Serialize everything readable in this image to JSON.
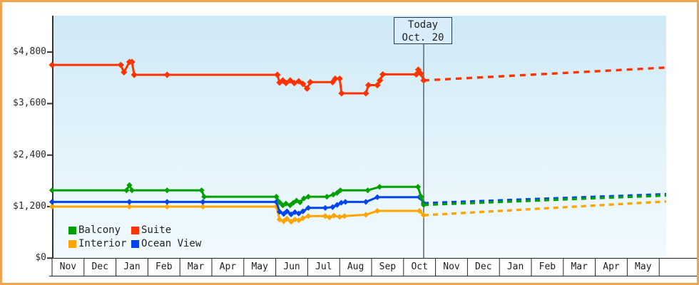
{
  "frame": {
    "border_color": "#efa452"
  },
  "today_box": {
    "line1": "Today",
    "line2": "Oct. 20"
  },
  "legend": {
    "items": [
      {
        "label": "Balcony",
        "color": "#00a000"
      },
      {
        "label": "Suite",
        "color": "#ff3300"
      },
      {
        "label": "Interior",
        "color": "#ffa500"
      },
      {
        "label": "Ocean View",
        "color": "#0044ee"
      }
    ]
  },
  "chart_data": {
    "type": "line",
    "title": "",
    "xlabel": "",
    "ylabel": "",
    "grid": false,
    "legend_position": "bottom-left",
    "background_gradient": [
      "#cfe9f6",
      "#f2fbfe"
    ],
    "y_axis": {
      "tick_labels": [
        "$0",
        "$1,200",
        "$2,400",
        "$3,600",
        "$4,800"
      ],
      "tick_values": [
        0,
        1200,
        2400,
        3600,
        4800
      ],
      "ylim": [
        0,
        5640
      ]
    },
    "x_axis": {
      "months": [
        "Nov",
        "Dec",
        "Jan",
        "Feb",
        "Mar",
        "Apr",
        "May",
        "Jun",
        "Jul",
        "Aug",
        "Sep",
        "Oct",
        "Nov",
        "Dec",
        "Jan",
        "Feb",
        "Mar",
        "Apr",
        "May"
      ]
    },
    "today_line": {
      "x_months": 11.63,
      "label": "Today Oct. 20"
    },
    "series": [
      {
        "name": "Interior",
        "color": "#ffa500",
        "solid": [
          [
            0,
            1200
          ],
          [
            2.42,
            1200
          ],
          [
            3.6,
            1200
          ],
          [
            4.72,
            1200
          ],
          [
            7.02,
            1200
          ],
          [
            7.12,
            900
          ],
          [
            7.25,
            860
          ],
          [
            7.35,
            920
          ],
          [
            7.48,
            850
          ],
          [
            7.6,
            900
          ],
          [
            7.72,
            880
          ],
          [
            7.85,
            930
          ],
          [
            8.02,
            980
          ],
          [
            8.55,
            980
          ],
          [
            8.68,
            950
          ],
          [
            8.82,
            990
          ],
          [
            9.0,
            960
          ],
          [
            9.15,
            980
          ],
          [
            9.82,
            1010
          ],
          [
            10.18,
            1100
          ],
          [
            11.5,
            1100
          ],
          [
            11.63,
            1000
          ]
        ],
        "projected_dashed": [
          [
            11.63,
            1000
          ],
          [
            19.22,
            1320
          ]
        ]
      },
      {
        "name": "Ocean View",
        "color": "#0044ee",
        "solid": [
          [
            0,
            1310
          ],
          [
            2.42,
            1310
          ],
          [
            3.6,
            1310
          ],
          [
            4.72,
            1310
          ],
          [
            7.02,
            1310
          ],
          [
            7.12,
            1080
          ],
          [
            7.25,
            1030
          ],
          [
            7.35,
            1090
          ],
          [
            7.48,
            1020
          ],
          [
            7.6,
            1070
          ],
          [
            7.72,
            1040
          ],
          [
            7.85,
            1090
          ],
          [
            8.02,
            1170
          ],
          [
            8.55,
            1170
          ],
          [
            8.78,
            1190
          ],
          [
            8.92,
            1240
          ],
          [
            9.05,
            1290
          ],
          [
            9.18,
            1310
          ],
          [
            9.82,
            1310
          ],
          [
            10.18,
            1420
          ],
          [
            11.5,
            1420
          ],
          [
            11.63,
            1280
          ]
        ],
        "projected_dashed": [
          [
            11.63,
            1280
          ],
          [
            19.22,
            1490
          ]
        ]
      },
      {
        "name": "Balcony",
        "color": "#00a000",
        "solid": [
          [
            0,
            1580
          ],
          [
            2.33,
            1580
          ],
          [
            2.42,
            1700
          ],
          [
            2.5,
            1580
          ],
          [
            3.6,
            1580
          ],
          [
            4.68,
            1580
          ],
          [
            4.76,
            1430
          ],
          [
            7.02,
            1430
          ],
          [
            7.12,
            1300
          ],
          [
            7.22,
            1230
          ],
          [
            7.32,
            1270
          ],
          [
            7.45,
            1230
          ],
          [
            7.55,
            1290
          ],
          [
            7.65,
            1340
          ],
          [
            7.76,
            1300
          ],
          [
            7.88,
            1390
          ],
          [
            8.02,
            1430
          ],
          [
            8.6,
            1430
          ],
          [
            8.8,
            1480
          ],
          [
            8.92,
            1520
          ],
          [
            9.02,
            1580
          ],
          [
            9.88,
            1580
          ],
          [
            10.25,
            1660
          ],
          [
            11.45,
            1660
          ],
          [
            11.55,
            1430
          ],
          [
            11.63,
            1240
          ]
        ],
        "projected_dashed": [
          [
            11.63,
            1240
          ],
          [
            19.22,
            1460
          ]
        ]
      },
      {
        "name": "Suite",
        "color": "#ff3300",
        "solid": [
          [
            0,
            4500
          ],
          [
            2.15,
            4500
          ],
          [
            2.25,
            4330
          ],
          [
            2.42,
            4570
          ],
          [
            2.5,
            4570
          ],
          [
            2.57,
            4270
          ],
          [
            3.6,
            4270
          ],
          [
            7.05,
            4270
          ],
          [
            7.12,
            4090
          ],
          [
            7.22,
            4140
          ],
          [
            7.32,
            4080
          ],
          [
            7.45,
            4140
          ],
          [
            7.58,
            4080
          ],
          [
            7.72,
            4120
          ],
          [
            7.85,
            4060
          ],
          [
            7.98,
            3950
          ],
          [
            8.08,
            4100
          ],
          [
            8.78,
            4100
          ],
          [
            8.86,
            4180
          ],
          [
            9.0,
            4180
          ],
          [
            9.06,
            3840
          ],
          [
            9.82,
            3840
          ],
          [
            9.9,
            4030
          ],
          [
            10.18,
            4030
          ],
          [
            10.26,
            4140
          ],
          [
            10.35,
            4280
          ],
          [
            11.4,
            4280
          ],
          [
            11.46,
            4390
          ],
          [
            11.54,
            4300
          ],
          [
            11.63,
            4140
          ]
        ],
        "projected_dashed": [
          [
            11.63,
            4140
          ],
          [
            19.22,
            4440
          ]
        ]
      }
    ]
  }
}
